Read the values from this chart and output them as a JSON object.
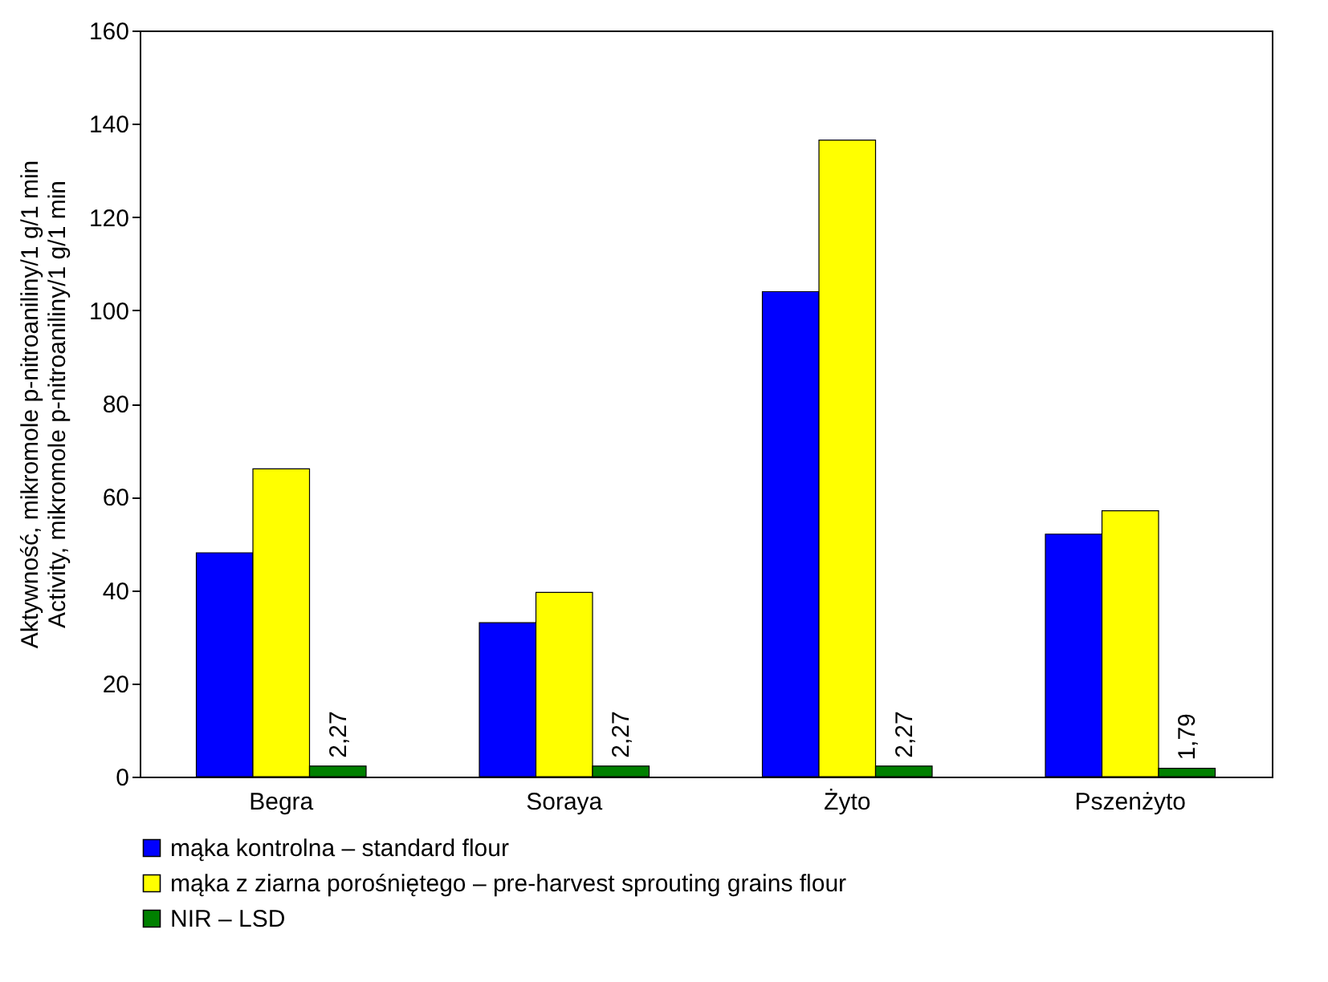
{
  "chart_data": {
    "type": "bar",
    "ylabel": "Aktywność, mikromole p-nitroaniliny/1 g/1 min\nActivity, mikromole p-nitroaniliny/1 g/1 min",
    "categories": [
      "Begra",
      "Soraya",
      "Żyto",
      "Pszenżyto"
    ],
    "series": [
      {
        "name": "mąka kontrolna – standard flour",
        "color": "#0000ff",
        "values": [
          48,
          33,
          104,
          52
        ]
      },
      {
        "name": "mąka z ziarna porośniętego – pre-harvest sprouting grains flour",
        "color": "#ffff00",
        "values": [
          66,
          39.5,
          136.5,
          57
        ]
      },
      {
        "name": "NIR – LSD",
        "color": "#008000",
        "values": [
          2.27,
          2.27,
          2.27,
          1.79
        ],
        "value_labels": [
          "2,27",
          "2,27",
          "2,27",
          "1,79"
        ]
      }
    ],
    "ylim": [
      0,
      160
    ],
    "yticks": [
      0,
      20,
      40,
      60,
      80,
      100,
      120,
      140,
      160
    ],
    "grid": false,
    "legend": "bottom"
  }
}
